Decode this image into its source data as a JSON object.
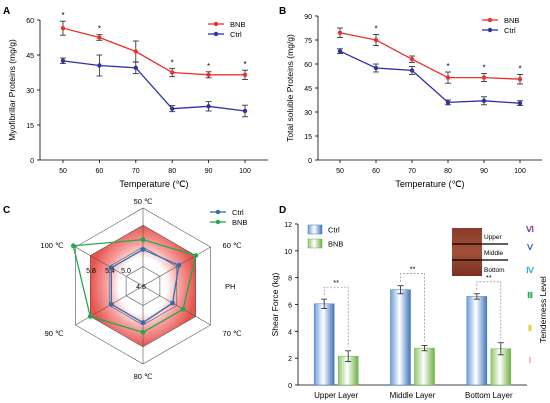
{
  "chart_data": [
    {
      "panel": "A",
      "type": "line",
      "xlabel": "Temperature (℃)",
      "ylabel": "Myofibrillar Proteins (mg/g)",
      "x": [
        50,
        60,
        70,
        80,
        90,
        100
      ],
      "ylim": [
        0,
        60
      ],
      "yticks": [
        0,
        15,
        30,
        45,
        60
      ],
      "series": [
        {
          "name": "BNB",
          "color": "#e8332f",
          "values": [
            56.5,
            52.5,
            46.5,
            37.5,
            36.5,
            36.5
          ],
          "errors": [
            3.0,
            1.2,
            4.5,
            1.8,
            1.3,
            2.0
          ]
        },
        {
          "name": "Ctrl",
          "color": "#3030a8",
          "values": [
            42.5,
            40.5,
            39.5,
            22.0,
            23.0,
            21.0
          ],
          "errors": [
            1.2,
            4.5,
            2.5,
            1.3,
            2.0,
            2.5
          ]
        }
      ],
      "significance": [
        "*",
        "*",
        "",
        "*",
        "*",
        "*"
      ],
      "legend": "top-right"
    },
    {
      "panel": "B",
      "type": "line",
      "xlabel": "Temperature (℃)",
      "ylabel": "Total soluble Proteins (mg/g)",
      "x": [
        50,
        60,
        70,
        80,
        90,
        100
      ],
      "ylim": [
        0,
        90
      ],
      "yticks": [
        0,
        15,
        30,
        45,
        60,
        75,
        90
      ],
      "series": [
        {
          "name": "BNB",
          "color": "#e8332f",
          "values": [
            79.5,
            75.0,
            63.0,
            51.5,
            51.5,
            50.5
          ],
          "errors": [
            3.0,
            3.5,
            2.0,
            3.5,
            2.5,
            3.0
          ]
        },
        {
          "name": "Ctrl",
          "color": "#3030a8",
          "values": [
            68.0,
            57.5,
            56.0,
            36.0,
            37.0,
            35.5
          ],
          "errors": [
            1.5,
            2.5,
            2.5,
            1.5,
            2.5,
            1.5
          ]
        }
      ],
      "significance": [
        "",
        "*",
        "",
        "*",
        "*",
        "*"
      ],
      "legend": "top-right"
    },
    {
      "panel": "C",
      "type": "radar",
      "axes": [
        "50 ℃",
        "60 ℃",
        "PH",
        "70 ℃",
        "80 ℃",
        "90 ℃",
        "100 ℃"
      ],
      "axes_order_note": "",
      "spokes": [
        "50 ℃",
        "60 ℃",
        "70 ℃",
        "80 ℃",
        "90 ℃",
        "100 ℃"
      ],
      "ring_labels": [
        "4.6",
        "5.0",
        "5.4",
        "5.8"
      ],
      "rmin": 4.6,
      "rmax": 6.2,
      "series": [
        {
          "name": "Ctrl",
          "color": "#2f6db5",
          "values": [
            5.35,
            5.45,
            5.3,
            5.35,
            5.35,
            5.35
          ]
        },
        {
          "name": "BNB",
          "color": "#22a84c",
          "values": [
            5.55,
            5.85,
            5.55,
            5.55,
            5.85,
            6.25
          ]
        }
      ],
      "legend": "top-right"
    },
    {
      "panel": "D",
      "type": "bar",
      "categories": [
        "Upper Layer",
        "Middle Layer",
        "Bottom Layer"
      ],
      "ylabel": "Shear Force (kg)",
      "ylim": [
        0,
        12
      ],
      "yticks": [
        0,
        2,
        4,
        6,
        8,
        10,
        12
      ],
      "series": [
        {
          "name": "Ctrl",
          "values": [
            6.05,
            7.1,
            6.6
          ],
          "errors": [
            0.35,
            0.3,
            0.2
          ]
        },
        {
          "name": "BNB",
          "values": [
            2.15,
            2.75,
            2.7
          ],
          "errors": [
            0.4,
            0.2,
            0.45
          ]
        }
      ],
      "significance": [
        "**",
        "**",
        "**"
      ],
      "right_axis_label": "Tenderness Level",
      "tenderness_levels": [
        {
          "label": "Ⅵ",
          "color": "#7b3f9e"
        },
        {
          "label": "Ⅴ",
          "color": "#2f6db5"
        },
        {
          "label": "Ⅳ",
          "color": "#2ab0d8"
        },
        {
          "label": "Ⅲ",
          "color": "#22a84c"
        },
        {
          "label": "Ⅱ",
          "color": "#e8c11c"
        },
        {
          "label": "Ⅰ",
          "color": "#f0a0a0"
        }
      ],
      "inset_labels": [
        "Upper",
        "Middle",
        "Bottom"
      ],
      "legend": "top-left"
    }
  ],
  "panel_letters": [
    "A",
    "B",
    "C",
    "D"
  ]
}
